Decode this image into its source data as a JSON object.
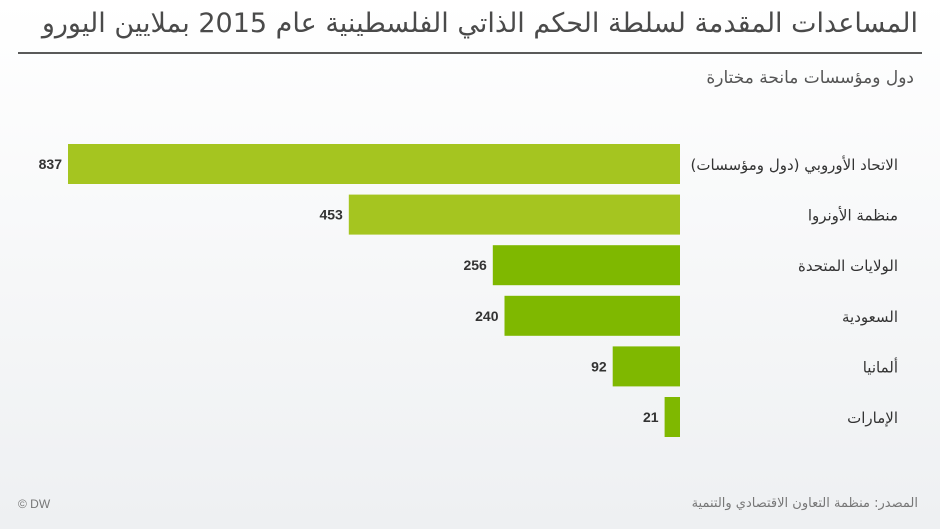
{
  "header": {
    "title": "المساعدات المقدمة لسلطة الحكم الذاتي الفلسطينية عام 2015 بملايين اليورو",
    "subtitle": "دول ومؤسسات مانحة مختارة"
  },
  "footer": {
    "source": "المصدر: منظمة التعاون الاقتصادي والتنمية",
    "brand": "© DW"
  },
  "colors": {
    "bar_dark": "#7fb800",
    "bar_light": "#a5c520",
    "value_text": "#333333",
    "label_text": "#333333"
  },
  "chart_data": {
    "type": "bar",
    "orientation": "horizontal",
    "title": "المساعدات المقدمة لسلطة الحكم الذاتي الفلسطينية عام 2015 بملايين اليورو",
    "subtitle": "دول ومؤسسات مانحة مختارة",
    "categories": [
      "الاتحاد الأوروبي (دول ومؤسسات)",
      "منظمة الأونروا",
      "الولايات المتحدة",
      "السعودية",
      "ألمانيا",
      "الإمارات"
    ],
    "values": [
      837,
      453,
      256,
      240,
      92,
      21
    ],
    "xlabel": "",
    "ylabel": "",
    "xlim": [
      0,
      837
    ],
    "grid": false,
    "legend": "none"
  }
}
